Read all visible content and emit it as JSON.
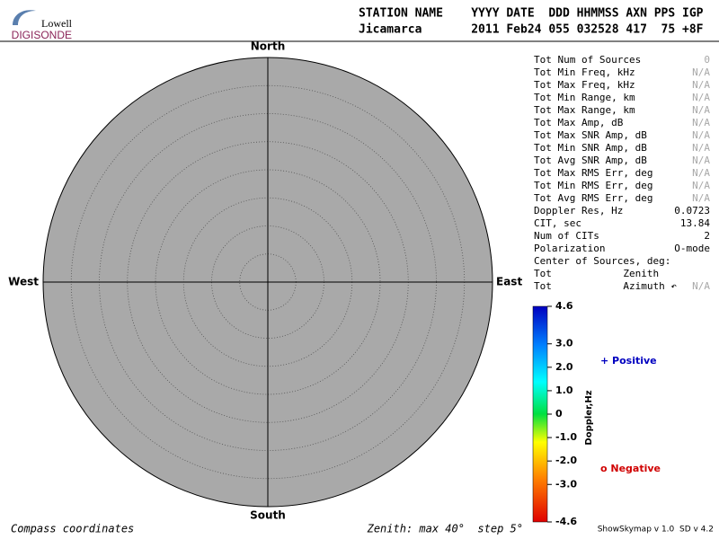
{
  "header": {
    "logo_top": "Lowell",
    "logo_bottom": "DIGISONDE",
    "columns": "STATION NAME    YYYY DATE  DDD HHMMSS AXN PPS IGP",
    "values": "Jicamarca       2011 Feb24 055 032528 417  75 +8F"
  },
  "compass": {
    "north": "North",
    "south": "South",
    "east": "East",
    "west": "West"
  },
  "stats": [
    [
      "Tot Num of Sources",
      "0"
    ],
    [
      "Tot Min Freq, kHz",
      "N/A"
    ],
    [
      "Tot Max Freq, kHz",
      "N/A"
    ],
    [
      "Tot Min Range, km",
      "N/A"
    ],
    [
      "Tot Max Range, km",
      "N/A"
    ],
    [
      "Tot Max Amp, dB",
      "N/A"
    ],
    [
      "Tot Max SNR Amp, dB",
      "N/A"
    ],
    [
      "Tot Min SNR Amp, dB",
      "N/A"
    ],
    [
      "Tot Avg SNR Amp, dB",
      "N/A"
    ],
    [
      "Tot Max RMS Err, deg",
      "N/A"
    ],
    [
      "Tot Min RMS Err, deg",
      "N/A"
    ],
    [
      "Tot Avg RMS Err, deg",
      "N/A"
    ],
    [
      "Doppler Res, Hz",
      "0.0723"
    ],
    [
      "CIT, sec",
      "13.84"
    ],
    [
      "Num of CITs",
      "2"
    ],
    [
      "Polarization",
      "O-mode"
    ],
    [
      "Center of Sources, deg:"
    ],
    [
      "Tot            Zenith"
    ],
    [
      "Tot            Azimuth ↶",
      "N/A"
    ]
  ],
  "colorbar": {
    "title": "Doppler,Hz",
    "lim": [
      -4.6,
      4.6
    ],
    "ticks": [
      4.6,
      {
        "value": 3,
        "label": "3.0"
      },
      {
        "value": 2,
        "label": "2.0"
      },
      {
        "value": 1,
        "label": "1.0"
      },
      0,
      {
        "value": -1,
        "label": "-1.0"
      },
      {
        "value": -2,
        "label": "-2.0"
      },
      {
        "value": -3,
        "label": "-3.0"
      },
      -4.6
    ]
  },
  "legend": {
    "positive": "+ Positive",
    "negative": "o Negative"
  },
  "footer": {
    "left": "Compass coordinates",
    "center": "Zenith: max 40°  step 5°",
    "right": "ShowSkymap v 1.0  SD v 4.2"
  }
}
